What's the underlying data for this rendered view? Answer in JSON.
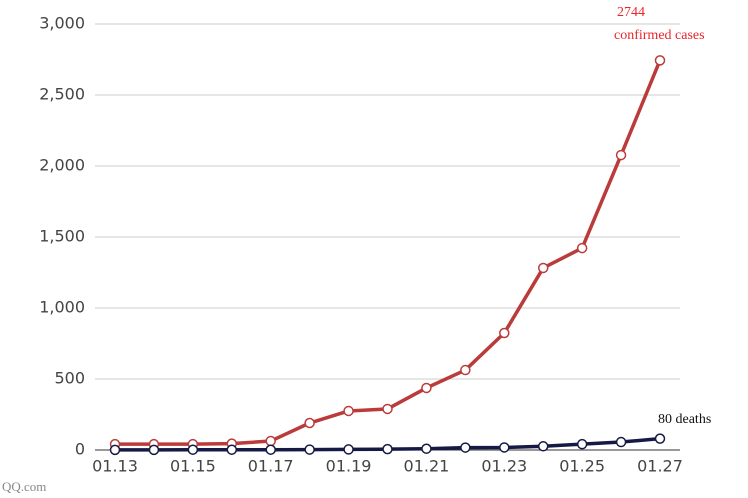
{
  "chart_data": {
    "type": "line",
    "categories": [
      "01.13",
      null,
      "01.15",
      null,
      "01.17",
      null,
      "01.19",
      null,
      "01.21",
      null,
      "01.23",
      null,
      "01.25",
      null,
      "01.27"
    ],
    "series": [
      {
        "color": "#bb3a3a",
        "values": [
          41,
          41,
          41,
          45,
          63,
          190,
          275,
          289,
          437,
          563,
          824,
          1282,
          1422,
          2077,
          2744
        ]
      },
      {
        "color": "#151a45",
        "values": [
          1,
          1,
          2,
          2,
          2,
          3,
          4,
          6,
          9,
          17,
          18,
          26,
          41,
          56,
          80
        ]
      }
    ],
    "ylim": [
      0,
      3000
    ],
    "yticks": [
      0,
      500,
      {
        "value": 1000,
        "label": "1,000"
      },
      {
        "value": 1500,
        "label": "1,500"
      },
      {
        "value": 2000,
        "label": "2,000"
      },
      {
        "value": 2500,
        "label": "2,500"
      },
      {
        "value": 3000,
        "label": "3,000"
      }
    ],
    "grid": true,
    "annotations": [
      "2744",
      "confirmed cases",
      "80 deaths"
    ],
    "source": "QQ.com"
  }
}
